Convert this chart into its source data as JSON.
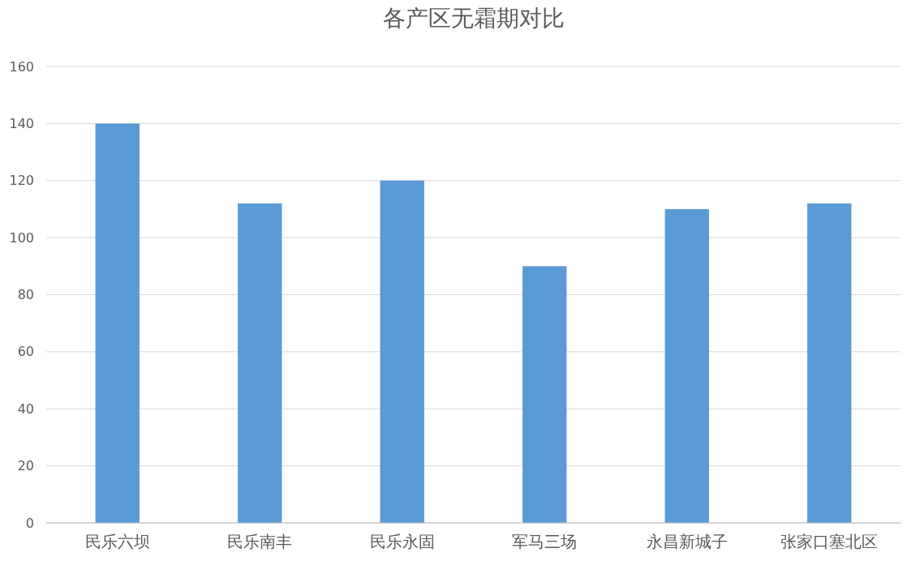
{
  "chart_data": {
    "type": "bar",
    "title": "各产区无霜期对比",
    "categories": [
      "民乐六坝",
      "民乐南丰",
      "民乐永固",
      "军马三场",
      "永昌新城子",
      "张家口塞北区"
    ],
    "values": [
      140,
      112,
      120,
      90,
      110,
      112
    ],
    "color": "#5b9bd5",
    "ylim": [
      0,
      160
    ],
    "yticks": [
      0,
      20,
      40,
      60,
      80,
      100,
      120,
      140,
      160
    ],
    "grid": "y"
  }
}
